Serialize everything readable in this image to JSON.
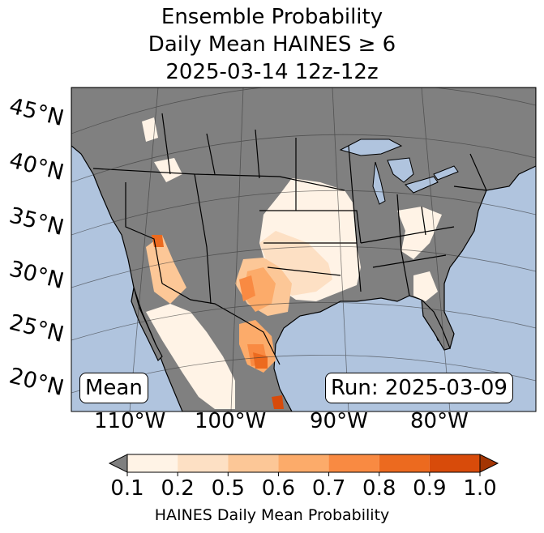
{
  "title": {
    "line1": "Ensemble Probability",
    "line2": "Daily Mean HAINES ≥ 6",
    "line3": "2025-03-14 12z-12z"
  },
  "lat_labels": [
    "45°N",
    "40°N",
    "35°N",
    "30°N",
    "25°N",
    "20°N"
  ],
  "lon_labels": [
    "110°W",
    "100°W",
    "90°W",
    "80°W"
  ],
  "badges": {
    "left": "Mean",
    "right": "Run: 2025-03-09"
  },
  "colorbar": {
    "label": "HAINES Daily Mean Probability",
    "ticks": [
      "0.1",
      "0.2",
      "0.5",
      "0.6",
      "0.7",
      "0.8",
      "0.9",
      "1.0"
    ],
    "colors": [
      "#fff3e6",
      "#fde0c4",
      "#fcc797",
      "#fcab6a",
      "#f98a42",
      "#ec6a1f",
      "#d84b0a"
    ],
    "under_color": "#7f7f7f",
    "over_color": "#a33503"
  },
  "colors": {
    "ocean": "#b0c4de",
    "land": "#808080",
    "borders": "#000000"
  }
}
